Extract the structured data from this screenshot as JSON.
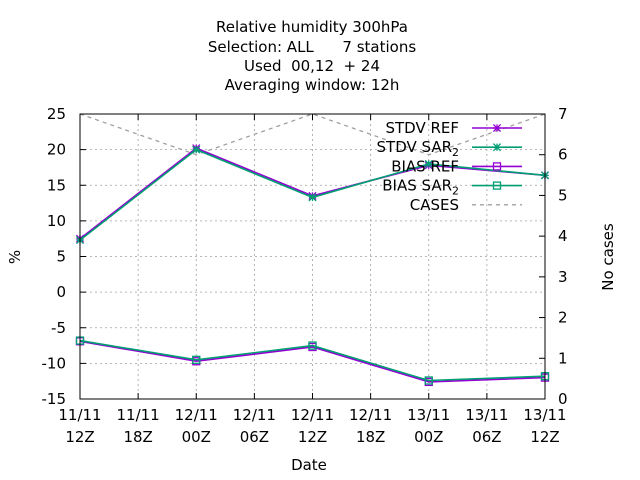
{
  "chart_data": {
    "type": "line",
    "title": {
      "lines": [
        "Relative humidity 300hPa",
        "Selection: ALL      7 stations",
        "Used  00,12  + 24",
        "Averaging window: 12h"
      ]
    },
    "xlabel": "Date",
    "ylabel": "%",
    "y2label": "No cases",
    "xlim": [
      0,
      8
    ],
    "ylim": [
      -15,
      25
    ],
    "y2lim": [
      0,
      7
    ],
    "grid": true,
    "legend_position": "top-right",
    "x_ticks": [
      {
        "x": 0,
        "l1": "11/11",
        "l2": "12Z"
      },
      {
        "x": 1,
        "l1": "11/11",
        "l2": "18Z"
      },
      {
        "x": 2,
        "l1": "12/11",
        "l2": "00Z"
      },
      {
        "x": 3,
        "l1": "12/11",
        "l2": "06Z"
      },
      {
        "x": 4,
        "l1": "12/11",
        "l2": "12Z"
      },
      {
        "x": 5,
        "l1": "12/11",
        "l2": "18Z"
      },
      {
        "x": 6,
        "l1": "13/11",
        "l2": "00Z"
      },
      {
        "x": 7,
        "l1": "13/11",
        "l2": "06Z"
      },
      {
        "x": 8,
        "l1": "13/11",
        "l2": "12Z"
      }
    ],
    "y_ticks": [
      -15,
      -10,
      -5,
      0,
      5,
      10,
      15,
      20,
      25
    ],
    "y2_ticks": [
      0,
      1,
      2,
      3,
      4,
      5,
      6,
      7
    ],
    "series": [
      {
        "name": "STDV REF",
        "sub": "",
        "axis": "y",
        "color": "#9400d3",
        "marker": "star",
        "dash": "",
        "x": [
          0,
          2,
          4,
          6,
          8
        ],
        "values": [
          7.5,
          20.2,
          13.5,
          17.8,
          16.4
        ]
      },
      {
        "name": "STDV SAR",
        "sub": "2",
        "axis": "y",
        "color": "#009e73",
        "marker": "star",
        "dash": "",
        "x": [
          0,
          2,
          4,
          6,
          8
        ],
        "values": [
          7.3,
          20.0,
          13.3,
          18.0,
          16.4
        ]
      },
      {
        "name": "BIAS REF",
        "sub": "",
        "axis": "y",
        "color": "#9400d3",
        "marker": "square",
        "dash": "",
        "x": [
          0,
          2,
          4,
          6,
          8
        ],
        "values": [
          -6.9,
          -9.7,
          -7.7,
          -12.6,
          -12.0
        ]
      },
      {
        "name": "BIAS SAR",
        "sub": "2",
        "axis": "y",
        "color": "#009e73",
        "marker": "square",
        "dash": "",
        "x": [
          0,
          2,
          4,
          6,
          8
        ],
        "values": [
          -6.8,
          -9.5,
          -7.5,
          -12.4,
          -11.8
        ]
      },
      {
        "name": "CASES",
        "sub": "",
        "axis": "y2",
        "color": "#a0a0a0",
        "marker": "none",
        "dash": "4,4",
        "x": [
          0,
          2,
          4,
          6,
          8
        ],
        "values": [
          7,
          6,
          7,
          6,
          7
        ]
      }
    ]
  }
}
